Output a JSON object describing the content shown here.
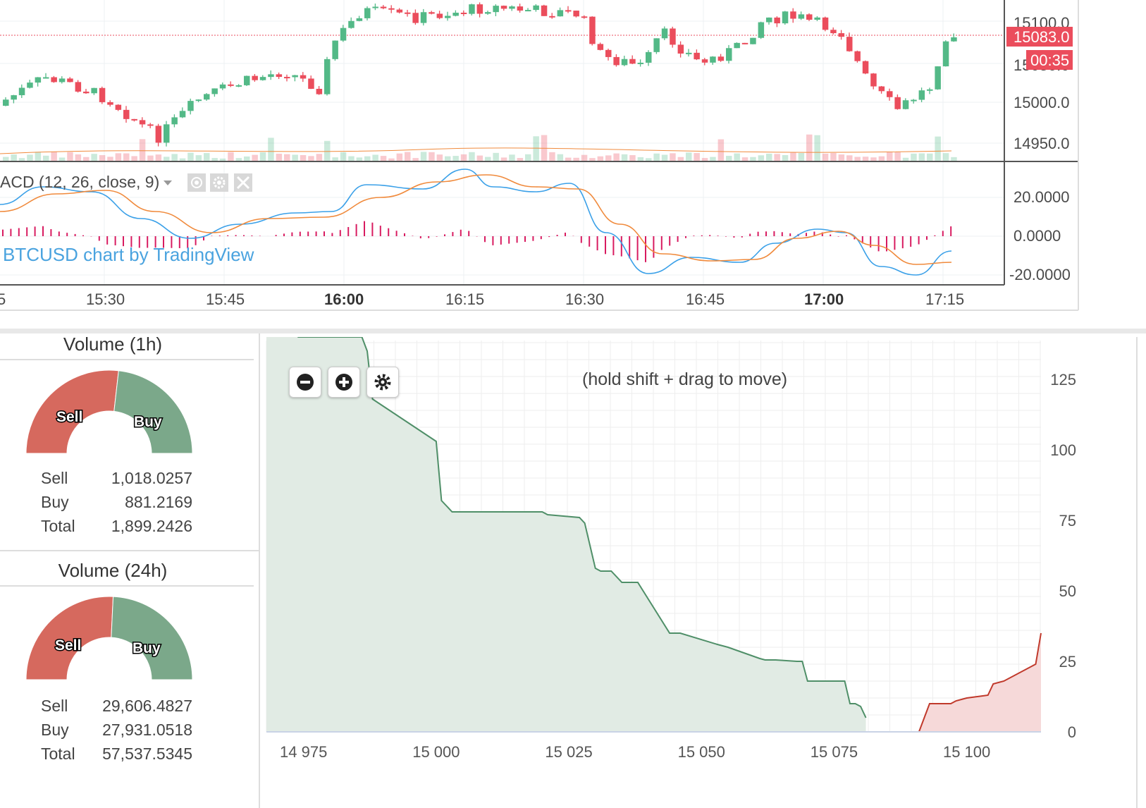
{
  "price_chart": {
    "price_axis": [
      "15100.0",
      "15050.0",
      "15000.0",
      "14950.0"
    ],
    "current_price": "15083.0",
    "countdown": "00:35",
    "macd_title": "ACD (12, 26, close, 9)",
    "macd_axis": [
      "20.0000",
      "0.0000",
      "-20.0000"
    ],
    "watermark": "BTCUSD chart by TradingView",
    "time_axis": [
      "5",
      "15:30",
      "15:45",
      "16:00",
      "16:15",
      "16:30",
      "16:45",
      "17:00",
      "17:15"
    ],
    "colors": {
      "up": "#53b987",
      "down": "#eb4d5c",
      "macd": "#3aa0e8",
      "signal": "#f08a3c",
      "hist": "#d81b60"
    }
  },
  "volume_1h": {
    "title": "Volume (1h)",
    "sell_label": "Sell",
    "buy_label": "Buy",
    "rows": [
      {
        "label": "Sell",
        "value": "1,018.0257"
      },
      {
        "label": "Buy",
        "value": "881.2169"
      },
      {
        "label": "Total",
        "value": "1,899.2426"
      }
    ],
    "sell_fraction": 0.536
  },
  "volume_24h": {
    "title": "Volume (24h)",
    "sell_label": "Sell",
    "buy_label": "Buy",
    "rows": [
      {
        "label": "Sell",
        "value": "29,606.4827"
      },
      {
        "label": "Buy",
        "value": "27,931.0518"
      },
      {
        "label": "Total",
        "value": "57,537.5345"
      }
    ],
    "sell_fraction": 0.515
  },
  "depth_chart": {
    "hint": "(hold shift + drag to move)",
    "zoom_out_icon": "minus-circle-icon",
    "zoom_in_icon": "plus-circle-icon",
    "settings_icon": "gear-icon",
    "colors": {
      "bid_line": "#4f8f68",
      "bid_fill": "#e1ebe4",
      "ask_line": "#c0392b",
      "ask_fill": "#f6d9d9"
    },
    "chart_data": {
      "type": "area",
      "x_ticks": [
        "14 975",
        "15 000",
        "15 025",
        "15 050",
        "15 075",
        "15 100"
      ],
      "y_ticks": [
        "125",
        "100",
        "75",
        "50",
        "25",
        "0"
      ],
      "ylim": [
        0,
        140
      ],
      "series": [
        {
          "name": "bids",
          "x": [
            14968,
            14973,
            14974,
            14986,
            14987,
            14988,
            15000,
            15001,
            15003,
            15020,
            15021,
            15027,
            15028,
            15030,
            15031,
            15033,
            15035,
            15038,
            15044,
            15046,
            15053,
            15055,
            15061,
            15062,
            15064,
            15068,
            15069,
            15070,
            15077,
            15078,
            15079,
            15080,
            15081
          ],
          "y": [
            142,
            142,
            140,
            140,
            135,
            118,
            103,
            82,
            78,
            78,
            77,
            76,
            74,
            58,
            57,
            57,
            53,
            53,
            35,
            35,
            31,
            30,
            26,
            25.5,
            25.5,
            25,
            25,
            18,
            18,
            10,
            10,
            9,
            5
          ]
        },
        {
          "name": "asks",
          "x": [
            15082,
            15091,
            15092,
            15093,
            15097,
            15098,
            15100,
            15104,
            15105,
            15107,
            15113,
            15114
          ],
          "y": [
            0,
            0,
            5,
            10,
            10,
            11,
            12,
            13,
            17,
            18,
            24,
            35
          ]
        }
      ]
    }
  }
}
